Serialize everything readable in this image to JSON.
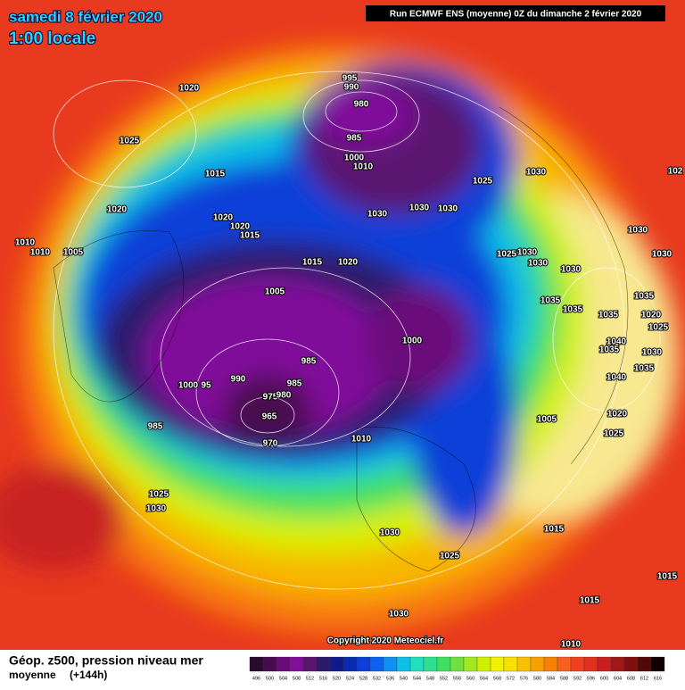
{
  "header": {
    "title": "samedi 8 février 2020",
    "time": "1:00 locale",
    "run": "Run ECMWF ENS (moyenne) 0Z du dimanche 2 février 2020"
  },
  "footer": {
    "caption_line1": "Géop. z500, pression niveau mer",
    "caption_line2a": "moyenne",
    "caption_line2b": "(+144h)",
    "copyright": "Copyright 2020 Meteociel.fr"
  },
  "legend": {
    "levels": [
      496,
      500,
      504,
      508,
      512,
      516,
      520,
      524,
      528,
      532,
      536,
      540,
      544,
      548,
      552,
      556,
      560,
      564,
      568,
      572,
      576,
      580,
      584,
      588,
      592,
      596,
      600,
      604,
      608,
      612,
      616
    ],
    "colors": [
      "#2a0a2e",
      "#4a0a4e",
      "#6a0a7a",
      "#80109a",
      "#5a1470",
      "#2a1a6a",
      "#101a8a",
      "#0a2ab0",
      "#0a40d8",
      "#1060f0",
      "#1090f0",
      "#10c0e8",
      "#20e0c0",
      "#30e090",
      "#40e060",
      "#70e040",
      "#a0e820",
      "#d0f000",
      "#f0f000",
      "#f8e000",
      "#f8c000",
      "#f8a000",
      "#f88000",
      "#f86020",
      "#f04020",
      "#e03020",
      "#c82020",
      "#a01818",
      "#801010",
      "#500808",
      "#100000"
    ]
  },
  "isobar_labels": [
    1020,
    1025,
    1015,
    1020,
    1020,
    1020,
    1015,
    1010,
    1010,
    1005,
    995,
    990,
    980,
    985,
    1000,
    1010,
    1025,
    1030,
    1030,
    1030,
    1030,
    1015,
    1020,
    1025,
    1030,
    1030,
    1030,
    1030,
    1030,
    1005,
    1035,
    1035,
    1035,
    1035,
    1020,
    1025,
    1000,
    985,
    1040,
    1035,
    1030,
    1035,
    990,
    1000,
    95,
    985,
    975,
    980,
    1040,
    965,
    985,
    970,
    1010,
    1005,
    1020,
    1025,
    1025,
    1030,
    1030,
    1015,
    1025,
    1015,
    1015,
    1030,
    1010,
    102
  ]
}
